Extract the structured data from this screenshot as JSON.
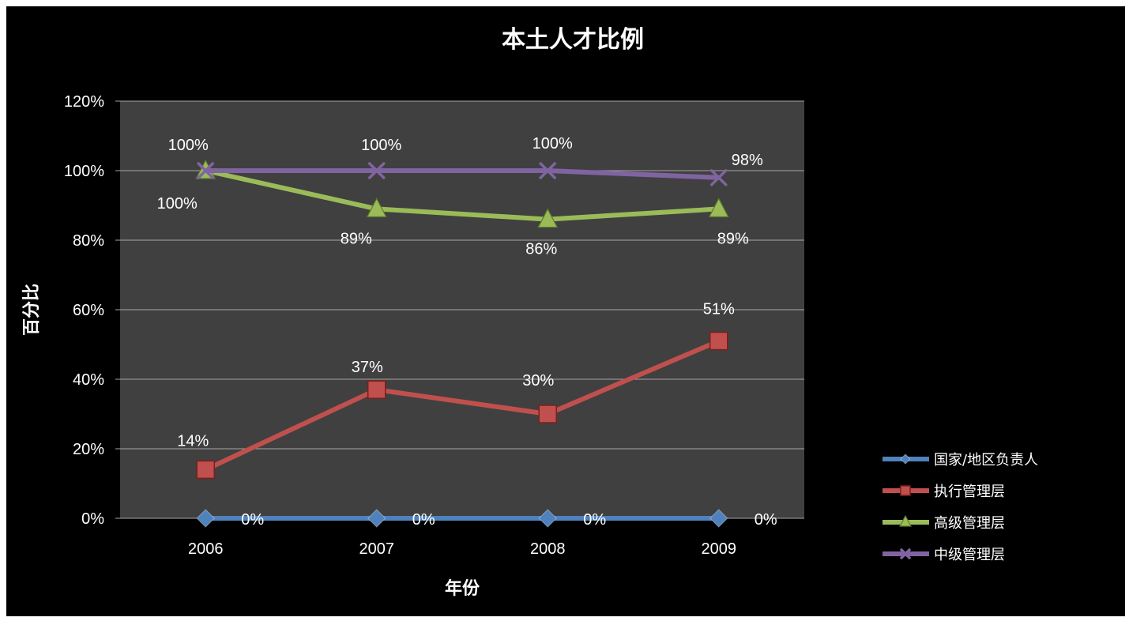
{
  "chart_data": {
    "type": "line",
    "title": "本土人才比例",
    "xlabel": "年份",
    "ylabel": "百分比",
    "categories": [
      "2006",
      "2007",
      "2008",
      "2009"
    ],
    "ylim": [
      0,
      120
    ],
    "yticks": [
      "0%",
      "20%",
      "40%",
      "60%",
      "80%",
      "100%",
      "120%"
    ],
    "grid": true,
    "legend_position": "right-bottom",
    "series": [
      {
        "name": "国家/地区负责人",
        "values": [
          0,
          0,
          0,
          0
        ],
        "labels": [
          "0%",
          "0%",
          "0%",
          "0%"
        ],
        "color": "#4f81bd",
        "marker": "diamond"
      },
      {
        "name": "执行管理层",
        "values": [
          14,
          37,
          30,
          51
        ],
        "labels": [
          "14%",
          "37%",
          "30%",
          "51%"
        ],
        "color": "#c0504d",
        "marker": "square"
      },
      {
        "name": "高级管理层",
        "values": [
          100,
          89,
          86,
          89
        ],
        "labels": [
          "100%",
          "89%",
          "86%",
          "89%"
        ],
        "color": "#9bbb59",
        "marker": "triangle"
      },
      {
        "name": "中级管理层",
        "values": [
          100,
          100,
          100,
          98
        ],
        "labels": [
          "100%",
          "100%",
          "100%",
          "98%"
        ],
        "color": "#8064a2",
        "marker": "x"
      }
    ]
  },
  "colors": {
    "background": "#000000",
    "plot_area": "#404040",
    "gridline": "#a6a6a6"
  }
}
